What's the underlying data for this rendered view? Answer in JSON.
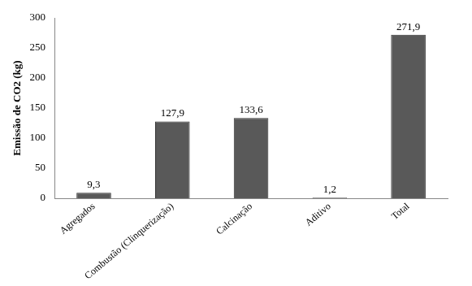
{
  "chart_data": {
    "type": "bar",
    "y_label": "Emissão de CO2 (kg)",
    "categories": [
      "Agregados",
      "Combustão (Clinquerização)",
      "Calcinação",
      "Aditivo",
      "Total"
    ],
    "values": [
      9.3,
      127.9,
      133.6,
      1.2,
      271.9
    ],
    "value_labels": [
      "9,3",
      "127,9",
      "133,6",
      "1,2",
      "271,9"
    ],
    "color": "#595959",
    "ylim": [
      0,
      300
    ],
    "yticks": [
      0,
      50,
      100,
      150,
      200,
      250,
      300
    ],
    "grid": false,
    "data_labels": true
  }
}
